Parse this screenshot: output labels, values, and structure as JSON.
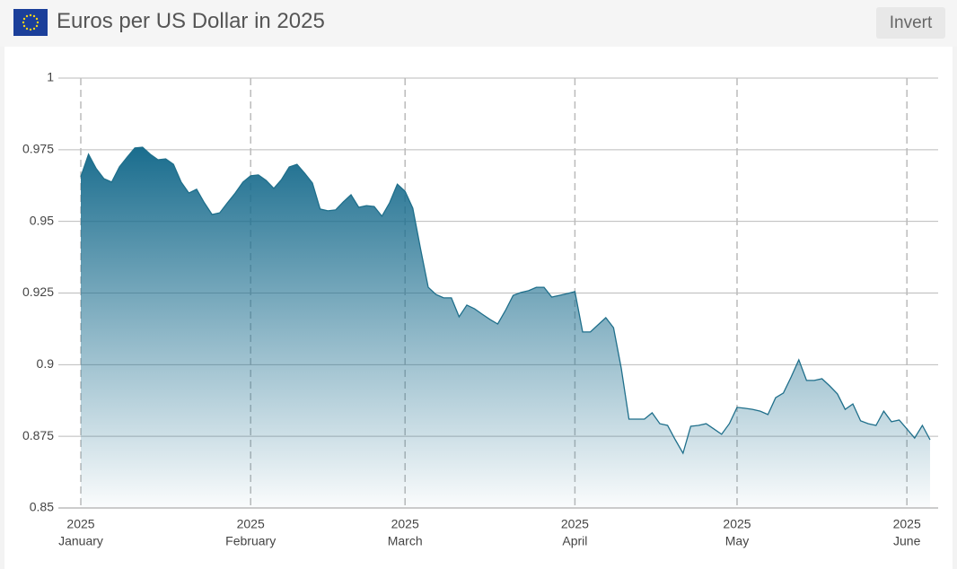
{
  "controls": {
    "invert": "Invert"
  },
  "chart_data": {
    "type": "area",
    "title": "Euros per US Dollar in 2025",
    "color": "#1f6f8b",
    "categories": [
      {
        "year": "2025",
        "month": "January"
      },
      null,
      null,
      null,
      null,
      null,
      null,
      null,
      null,
      null,
      null,
      null,
      null,
      null,
      null,
      null,
      null,
      null,
      null,
      null,
      null,
      null,
      {
        "year": "2025",
        "month": "February"
      },
      null,
      null,
      null,
      null,
      null,
      null,
      null,
      null,
      null,
      null,
      null,
      null,
      null,
      null,
      null,
      null,
      null,
      null,
      null,
      {
        "year": "2025",
        "month": "March"
      },
      null,
      null,
      null,
      null,
      null,
      null,
      null,
      null,
      null,
      null,
      null,
      null,
      null,
      null,
      null,
      null,
      null,
      null,
      null,
      null,
      null,
      {
        "year": "2025",
        "month": "April"
      },
      null,
      null,
      null,
      null,
      null,
      null,
      null,
      null,
      null,
      null,
      null,
      null,
      null,
      null,
      null,
      null,
      null,
      null,
      null,
      null,
      {
        "year": "2025",
        "month": "May"
      },
      null,
      null,
      null,
      null,
      null,
      null,
      null,
      null,
      null,
      null,
      null,
      null,
      null,
      null,
      null,
      null,
      null,
      null,
      null,
      null,
      null,
      {
        "year": "2025",
        "month": "June"
      },
      null,
      null,
      null
    ],
    "values": [
      0.9656,
      0.9734,
      0.9684,
      0.9649,
      0.9637,
      0.969,
      0.9724,
      0.9756,
      0.9759,
      0.9734,
      0.9715,
      0.9718,
      0.9699,
      0.9637,
      0.9599,
      0.9612,
      0.9565,
      0.9524,
      0.953,
      0.9565,
      0.9599,
      0.9637,
      0.9659,
      0.9662,
      0.9643,
      0.9615,
      0.9646,
      0.969,
      0.9699,
      0.9668,
      0.9634,
      0.9543,
      0.9537,
      0.954,
      0.9568,
      0.9593,
      0.9549,
      0.9555,
      0.9552,
      0.9518,
      0.9565,
      0.963,
      0.9605,
      0.9546,
      0.9405,
      0.927,
      0.9245,
      0.9233,
      0.9233,
      0.9167,
      0.9208,
      0.9195,
      0.9176,
      0.9158,
      0.9142,
      0.9189,
      0.9242,
      0.9252,
      0.9258,
      0.927,
      0.927,
      0.9236,
      0.9242,
      0.9248,
      0.9255,
      0.9114,
      0.9114,
      0.9139,
      0.9164,
      0.9129,
      0.8988,
      0.881,
      0.881,
      0.881,
      0.8832,
      0.8794,
      0.8788,
      0.8738,
      0.8691,
      0.8785,
      0.8788,
      0.8794,
      0.8776,
      0.8757,
      0.8794,
      0.8851,
      0.8848,
      0.8844,
      0.8838,
      0.8826,
      0.8885,
      0.8901,
      0.8957,
      0.9017,
      0.8945,
      0.8945,
      0.8951,
      0.8926,
      0.8898,
      0.8844,
      0.8863,
      0.8804,
      0.8794,
      0.8788,
      0.8838,
      0.8801,
      0.8807,
      0.8776,
      0.8744,
      0.8788,
      0.8738
    ],
    "ylim": [
      0.85,
      1
    ],
    "yticks": [
      0.85,
      0.875,
      0.9,
      0.925,
      0.95,
      0.975,
      1
    ],
    "grid": true
  }
}
